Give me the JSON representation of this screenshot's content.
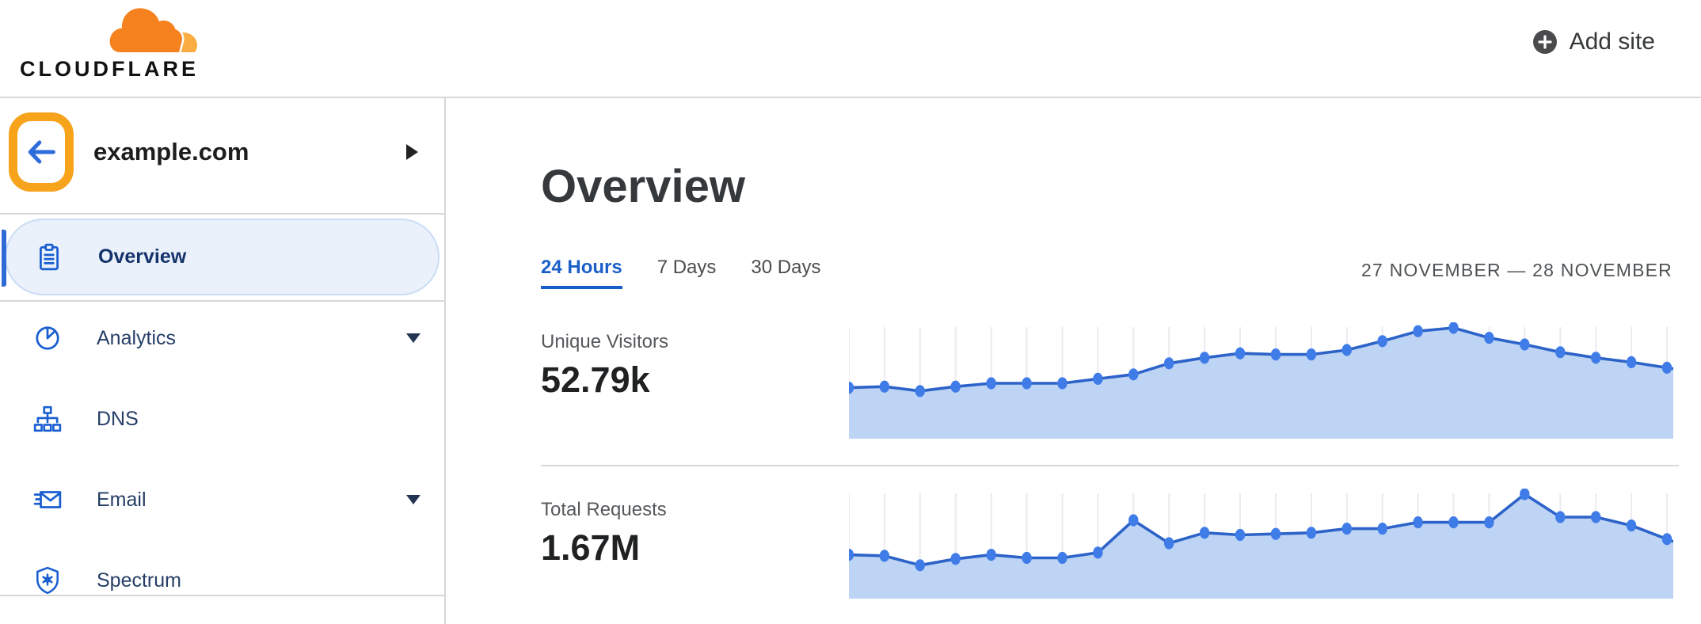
{
  "topbar": {
    "brand": "CLOUDFLARE",
    "add_site_label": "Add site",
    "icons": {
      "add_site": "plus-circle-icon"
    }
  },
  "sidebar": {
    "site_name": "example.com",
    "back_icon": "arrow-left-icon",
    "site_expand_icon": "chevron-right-icon",
    "back_highlighted": true,
    "items": [
      {
        "label": "Overview",
        "icon": "clipboard-icon",
        "selected": true,
        "has_submenu": false
      },
      {
        "label": "Analytics",
        "icon": "pie-chart-icon",
        "selected": false,
        "has_submenu": true
      },
      {
        "label": "DNS",
        "icon": "network-icon",
        "selected": false,
        "has_submenu": false
      },
      {
        "label": "Email",
        "icon": "email-icon",
        "selected": false,
        "has_submenu": true
      },
      {
        "label": "Spectrum",
        "icon": "shield-icon",
        "selected": false,
        "has_submenu": false
      }
    ]
  },
  "main": {
    "title": "Overview",
    "tabs": [
      {
        "label": "24 Hours",
        "active": true
      },
      {
        "label": "7 Days",
        "active": false
      },
      {
        "label": "30 Days",
        "active": false
      }
    ],
    "date_range": "27 NOVEMBER — 28 NOVEMBER",
    "metrics": [
      {
        "label": "Unique Visitors",
        "value": "52.79k"
      },
      {
        "label": "Total Requests",
        "value": "1.67M"
      }
    ]
  },
  "chart_data": [
    {
      "type": "area",
      "title": "Unique Visitors",
      "displayed_total": "52.79k",
      "x": [
        0,
        1,
        2,
        3,
        4,
        5,
        6,
        7,
        8,
        9,
        10,
        11,
        12,
        13,
        14,
        15,
        16,
        17,
        18,
        19,
        20,
        21,
        22,
        23
      ],
      "xlabel": "hour (24-hour window, ticks unlabeled)",
      "ylabel": "",
      "points_normalized": [
        0.46,
        0.47,
        0.43,
        0.47,
        0.5,
        0.5,
        0.5,
        0.54,
        0.58,
        0.68,
        0.73,
        0.77,
        0.76,
        0.76,
        0.8,
        0.88,
        0.97,
        1.0,
        0.91,
        0.85,
        0.78,
        0.73,
        0.69,
        0.64
      ],
      "ylim": [
        0,
        1
      ],
      "grid": "vertical-only",
      "legend": "none"
    },
    {
      "type": "area",
      "title": "Total Requests",
      "displayed_total": "1.67M",
      "x": [
        0,
        1,
        2,
        3,
        4,
        5,
        6,
        7,
        8,
        9,
        10,
        11,
        12,
        13,
        14,
        15,
        16,
        17,
        18,
        19,
        20,
        21,
        22,
        23
      ],
      "xlabel": "hour (24-hour window, ticks unlabeled)",
      "ylabel": "",
      "points_normalized": [
        0.42,
        0.41,
        0.32,
        0.38,
        0.42,
        0.39,
        0.39,
        0.44,
        0.75,
        0.53,
        0.63,
        0.61,
        0.62,
        0.63,
        0.67,
        0.67,
        0.73,
        0.73,
        0.73,
        1.0,
        0.78,
        0.78,
        0.7,
        0.57
      ],
      "ylim": [
        0,
        1
      ],
      "grid": "vertical-only",
      "legend": "none"
    }
  ],
  "colors": {
    "brand_orange": "#f6821f",
    "brand_orange_light": "#fbad41",
    "highlight_orange": "#f7a31c",
    "link_blue": "#1a5ec8",
    "icon_blue": "#1a5ed1",
    "back_arrow_blue": "#2e6bdb",
    "selected_bg": "#eaf1fb",
    "selected_border": "#cadcf5",
    "chart_line": "#2d63c8",
    "chart_fill": "#bdd4f4",
    "chart_dot": "#3f7ce8",
    "chart_gridline": "#ebebf0",
    "divider_gray": "#d8d8d8"
  }
}
